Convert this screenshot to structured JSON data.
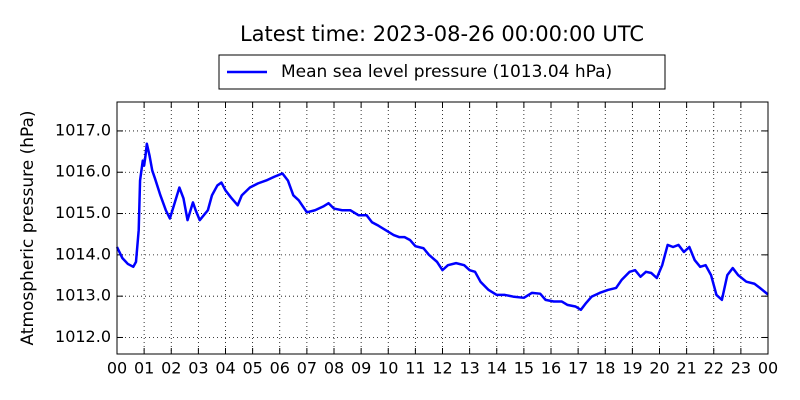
{
  "chart_data": {
    "type": "line",
    "title": "Latest time: 2023-08-26 00:00:00 UTC",
    "ylabel": "Atmospheric pressure (hPa)",
    "grid": true,
    "legend": "top-center",
    "xlim": [
      0,
      24
    ],
    "ylim": [
      1011.6,
      1017.7
    ],
    "xticks": [
      {
        "value": 0,
        "label": "00"
      },
      {
        "value": 1,
        "label": "01"
      },
      {
        "value": 2,
        "label": "02"
      },
      {
        "value": 3,
        "label": "03"
      },
      {
        "value": 4,
        "label": "04"
      },
      {
        "value": 5,
        "label": "05"
      },
      {
        "value": 6,
        "label": "06"
      },
      {
        "value": 7,
        "label": "07"
      },
      {
        "value": 8,
        "label": "08"
      },
      {
        "value": 9,
        "label": "09"
      },
      {
        "value": 10,
        "label": "10"
      },
      {
        "value": 11,
        "label": "11"
      },
      {
        "value": 12,
        "label": "12"
      },
      {
        "value": 13,
        "label": "13"
      },
      {
        "value": 14,
        "label": "14"
      },
      {
        "value": 15,
        "label": "15"
      },
      {
        "value": 16,
        "label": "16"
      },
      {
        "value": 17,
        "label": "17"
      },
      {
        "value": 18,
        "label": "18"
      },
      {
        "value": 19,
        "label": "19"
      },
      {
        "value": 20,
        "label": "20"
      },
      {
        "value": 21,
        "label": "21"
      },
      {
        "value": 22,
        "label": "22"
      },
      {
        "value": 23,
        "label": "23"
      },
      {
        "value": 24,
        "label": "00"
      }
    ],
    "yticks": [
      {
        "value": 1012,
        "label": "1012.0"
      },
      {
        "value": 1013,
        "label": "1013.0"
      },
      {
        "value": 1014,
        "label": "1014.0"
      },
      {
        "value": 1015,
        "label": "1015.0"
      },
      {
        "value": 1016,
        "label": "1016.0"
      },
      {
        "value": 1017,
        "label": "1017.0"
      }
    ],
    "x": [
      0,
      0.2,
      0.4,
      0.6,
      0.7,
      0.8,
      0.85,
      0.95,
      1.0,
      1.05,
      1.1,
      1.2,
      1.3,
      1.4,
      1.6,
      1.8,
      1.95,
      2.1,
      2.3,
      2.45,
      2.6,
      2.8,
      2.9,
      3.05,
      3.2,
      3.35,
      3.5,
      3.7,
      3.85,
      4.0,
      4.2,
      4.45,
      4.6,
      4.9,
      5.2,
      5.5,
      5.8,
      6.1,
      6.3,
      6.5,
      6.7,
      7.0,
      7.3,
      7.6,
      7.8,
      8.0,
      8.3,
      8.6,
      8.9,
      9.2,
      9.4,
      9.6,
      9.9,
      10.2,
      10.4,
      10.6,
      10.8,
      11.0,
      11.3,
      11.5,
      11.8,
      12.0,
      12.2,
      12.5,
      12.8,
      13.0,
      13.2,
      13.4,
      13.7,
      14.0,
      14.3,
      14.6,
      15.0,
      15.3,
      15.6,
      15.8,
      16.1,
      16.4,
      16.6,
      16.9,
      17.1,
      17.3,
      17.5,
      17.8,
      18.1,
      18.4,
      18.6,
      18.9,
      19.1,
      19.3,
      19.5,
      19.7,
      19.9,
      20.1,
      20.3,
      20.5,
      20.7,
      20.9,
      21.1,
      21.3,
      21.5,
      21.7,
      21.9,
      22.1,
      22.3,
      22.5,
      22.7,
      22.9,
      23.2,
      23.5,
      23.7,
      24.0
    ],
    "series": [
      {
        "name": "Mean sea level pressure (1013.04 hPa)",
        "color": "#0000ff",
        "values": [
          1014.19,
          1013.92,
          1013.78,
          1013.71,
          1013.83,
          1014.6,
          1015.8,
          1016.28,
          1016.16,
          1016.4,
          1016.69,
          1016.4,
          1016.04,
          1015.85,
          1015.44,
          1015.08,
          1014.88,
          1015.2,
          1015.63,
          1015.37,
          1014.84,
          1015.27,
          1015.08,
          1014.84,
          1014.96,
          1015.08,
          1015.44,
          1015.68,
          1015.75,
          1015.56,
          1015.39,
          1015.2,
          1015.44,
          1015.63,
          1015.73,
          1015.8,
          1015.89,
          1015.97,
          1015.8,
          1015.44,
          1015.32,
          1015.03,
          1015.08,
          1015.17,
          1015.25,
          1015.12,
          1015.08,
          1015.08,
          1014.96,
          1014.96,
          1014.79,
          1014.72,
          1014.6,
          1014.48,
          1014.43,
          1014.43,
          1014.36,
          1014.21,
          1014.16,
          1014.0,
          1013.83,
          1013.63,
          1013.75,
          1013.8,
          1013.75,
          1013.63,
          1013.59,
          1013.35,
          1013.15,
          1013.03,
          1013.03,
          1012.99,
          1012.96,
          1013.08,
          1013.06,
          1012.91,
          1012.87,
          1012.87,
          1012.79,
          1012.75,
          1012.67,
          1012.84,
          1012.99,
          1013.08,
          1013.15,
          1013.2,
          1013.39,
          1013.59,
          1013.63,
          1013.47,
          1013.59,
          1013.56,
          1013.44,
          1013.75,
          1014.24,
          1014.19,
          1014.24,
          1014.07,
          1014.19,
          1013.87,
          1013.71,
          1013.75,
          1013.51,
          1013.03,
          1012.91,
          1013.51,
          1013.68,
          1013.51,
          1013.35,
          1013.3,
          1013.2,
          1013.04
        ]
      }
    ]
  }
}
